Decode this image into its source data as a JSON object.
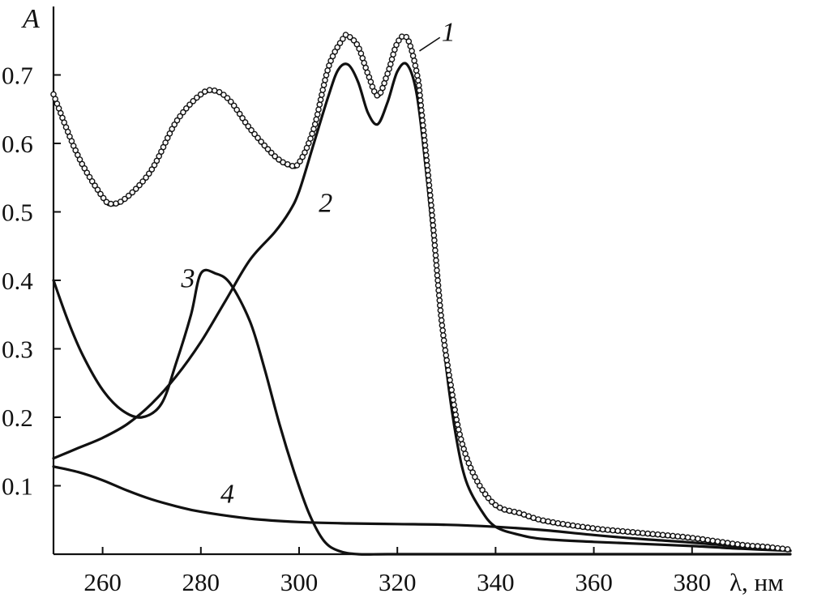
{
  "chart_data": {
    "type": "line",
    "ylabel": "A",
    "xlabel": "λ, нм",
    "xlim": [
      250,
      400
    ],
    "ylim": [
      0,
      0.8
    ],
    "xticks": [
      260,
      280,
      300,
      320,
      340,
      360,
      380
    ],
    "yticks": [
      {
        "value": 0.1,
        "label": "0.1"
      },
      {
        "value": 0.2,
        "label": "0.2"
      },
      {
        "value": 0.3,
        "label": "0.3"
      },
      {
        "value": 0.4,
        "label": "0.4"
      },
      {
        "value": 0.5,
        "label": "0.5"
      },
      {
        "value": 0.6,
        "label": "0.6"
      },
      {
        "value": 0.7,
        "label": "0.7"
      }
    ],
    "grid": false,
    "series": [
      {
        "name": "1",
        "style": "line-with-circles",
        "x": [
          250,
          255,
          260,
          262,
          265,
          270,
          275,
          280,
          283,
          286,
          290,
          295,
          298,
          300,
          303,
          306,
          309,
          310,
          312,
          314,
          316,
          318,
          320,
          322,
          324,
          325,
          327,
          329,
          331,
          333,
          336,
          340,
          345,
          350,
          360,
          370,
          380,
          390,
          395,
          400
        ],
        "y": [
          0.67,
          0.58,
          0.52,
          0.51,
          0.52,
          0.56,
          0.63,
          0.67,
          0.675,
          0.66,
          0.62,
          0.58,
          0.567,
          0.57,
          0.62,
          0.71,
          0.752,
          0.755,
          0.74,
          0.7,
          0.668,
          0.7,
          0.745,
          0.752,
          0.7,
          0.64,
          0.5,
          0.34,
          0.24,
          0.165,
          0.108,
          0.07,
          0.058,
          0.047,
          0.036,
          0.029,
          0.022,
          0.012,
          0.009,
          0.005
        ]
      },
      {
        "name": "2",
        "style": "line",
        "x": [
          250,
          255,
          260,
          265,
          270,
          275,
          280,
          285,
          290,
          295,
          298,
          300,
          303,
          306,
          308,
          310,
          312,
          314,
          316,
          318,
          320,
          322,
          324,
          326,
          328,
          330,
          332,
          334,
          337,
          340,
          345,
          350,
          360,
          370,
          380,
          390,
          400
        ],
        "y": [
          0.14,
          0.155,
          0.17,
          0.19,
          0.22,
          0.26,
          0.31,
          0.37,
          0.43,
          0.47,
          0.5,
          0.53,
          0.6,
          0.67,
          0.708,
          0.715,
          0.69,
          0.645,
          0.628,
          0.66,
          0.705,
          0.715,
          0.67,
          0.55,
          0.41,
          0.27,
          0.17,
          0.107,
          0.065,
          0.04,
          0.028,
          0.022,
          0.018,
          0.015,
          0.012,
          0.008,
          0.005
        ]
      },
      {
        "name": "3",
        "style": "line",
        "x": [
          250,
          253,
          256,
          260,
          264,
          268,
          272,
          275,
          278,
          280,
          283,
          286,
          290,
          293,
          296,
          299,
          302,
          305,
          308,
          312,
          318,
          330,
          350,
          400
        ],
        "y": [
          0.4,
          0.34,
          0.29,
          0.24,
          0.21,
          0.2,
          0.22,
          0.28,
          0.35,
          0.41,
          0.41,
          0.395,
          0.34,
          0.27,
          0.19,
          0.12,
          0.06,
          0.02,
          0.005,
          0.0,
          0.0,
          0.0,
          0.0,
          0.0
        ]
      },
      {
        "name": "4",
        "style": "line",
        "x": [
          250,
          255,
          260,
          265,
          270,
          275,
          280,
          290,
          300,
          310,
          320,
          330,
          340,
          350,
          360,
          370,
          380,
          390,
          400
        ],
        "y": [
          0.128,
          0.12,
          0.108,
          0.093,
          0.08,
          0.07,
          0.062,
          0.052,
          0.047,
          0.045,
          0.044,
          0.043,
          0.04,
          0.035,
          0.028,
          0.022,
          0.017,
          0.011,
          0.005
        ]
      }
    ],
    "curve_labels": [
      {
        "text": "1",
        "x": 329,
        "y": 0.75
      },
      {
        "text": "2",
        "x": 304,
        "y": 0.5
      },
      {
        "text": "3",
        "x": 276,
        "y": 0.39
      },
      {
        "text": "4",
        "x": 284,
        "y": 0.075
      }
    ]
  }
}
